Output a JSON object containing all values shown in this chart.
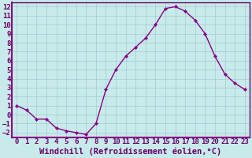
{
  "x": [
    0,
    1,
    2,
    3,
    4,
    5,
    6,
    7,
    8,
    9,
    10,
    11,
    12,
    13,
    14,
    15,
    16,
    17,
    18,
    19,
    20,
    21,
    22,
    23
  ],
  "y": [
    1.0,
    0.5,
    -0.5,
    -0.5,
    -1.5,
    -1.8,
    -2.0,
    -2.2,
    -1.0,
    2.8,
    5.0,
    6.5,
    7.5,
    8.5,
    10.0,
    11.8,
    12.0,
    11.5,
    10.5,
    9.0,
    6.5,
    4.5,
    3.5,
    2.8
  ],
  "line_color": "#880088",
  "marker": "D",
  "marker_size": 2.0,
  "bg_color": "#c8eaea",
  "grid_color": "#a0cccc",
  "xlabel": "Windchill (Refroidissement éolien,°C)",
  "xlim": [
    -0.5,
    23.5
  ],
  "ylim": [
    -2.5,
    12.5
  ],
  "xticks": [
    0,
    1,
    2,
    3,
    4,
    5,
    6,
    7,
    8,
    9,
    10,
    11,
    12,
    13,
    14,
    15,
    16,
    17,
    18,
    19,
    20,
    21,
    22,
    23
  ],
  "yticks": [
    -2,
    -1,
    0,
    1,
    2,
    3,
    4,
    5,
    6,
    7,
    8,
    9,
    10,
    11,
    12
  ],
  "tick_label_size": 6.5,
  "xlabel_size": 7.5,
  "axis_color": "#660066",
  "spine_color": "#660066",
  "bottom_spine_color": "#880088"
}
